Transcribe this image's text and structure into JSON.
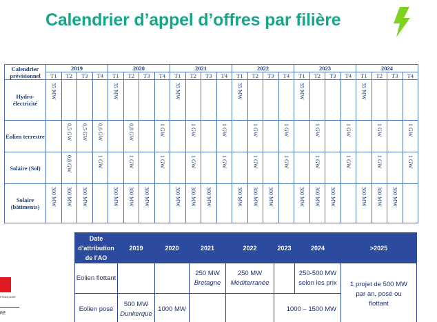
{
  "title": "Calendrier d’appel d’offres par filière",
  "calendar": {
    "corner": "Calendrier prévisionnel",
    "years": [
      "2019",
      "2020",
      "2021",
      "2022",
      "2023",
      "2024"
    ],
    "quarters": [
      "T1",
      "T2",
      "T3",
      "T4"
    ],
    "rows": [
      {
        "label": "Hydro-électricité",
        "cells": [
          "35 MW",
          "",
          "",
          "",
          "35 MW",
          "",
          "",
          "",
          "35 MW",
          "",
          "",
          "",
          "35 MW",
          "",
          "",
          "",
          "35 MW",
          "",
          "",
          "",
          "35 MW",
          "",
          "",
          ""
        ]
      },
      {
        "label": "Eolien terrestre",
        "cells": [
          "",
          "0,5 GW",
          "0,5 GW",
          "0,6 GW",
          "",
          "0,8 GW",
          "",
          "1 GW",
          "",
          "1 GW",
          "",
          "1 GW",
          "",
          "1 GW",
          "",
          "1 GW",
          "",
          "1 GW",
          "",
          "1 GW",
          "",
          "1 GW",
          "",
          "1 GW"
        ]
      },
      {
        "label": "Solaire (Sol)",
        "cells": [
          "",
          "0,8 GW",
          "",
          "1 GW",
          "",
          "1 GW",
          "",
          "1 GW",
          "",
          "1 GW",
          "",
          "1 GW",
          "",
          "1 GW",
          "",
          "1 GW",
          "",
          "1 GW",
          "",
          "1 GW",
          "",
          "1 GW",
          "",
          "1 GW"
        ]
      },
      {
        "label": "Solaire (bâtiments)",
        "cells": [
          "300 MW",
          "300 MW",
          "300 MW",
          "",
          "300 MW",
          "300 MW",
          "300 MW",
          "",
          "300 MW",
          "300 MW",
          "300 MW",
          "",
          "300 MW",
          "300 MW",
          "300 MW",
          "",
          "300 MW",
          "300 MW",
          "300 MW",
          "",
          "300 MW",
          "300 MW",
          "300 MW",
          ""
        ]
      }
    ]
  },
  "ao_table": {
    "header": {
      "date": "Date d’attribution de l’AO",
      "cols": [
        "2019",
        "2020",
        "2021",
        "2022",
        "2023",
        "2024",
        ">2025"
      ]
    },
    "flottant": {
      "label": "Eolien flottant",
      "y2021_mw": "250 MW",
      "y2021_loc": "Bretagne",
      "y2022_mw": "250 MW",
      "y2022_loc": "Méditerranée",
      "y2024": "250-500 MW selon les prix",
      "y2025": "1 projet de 500 MW par an, posé ou flottant"
    },
    "pose": {
      "label": "Eolien posé",
      "y2019_mw": "500 MW",
      "y2019_loc": "Dunkerque",
      "y2020": "1000 MW",
      "y2023_2024": "1000 – 1500 MW"
    }
  },
  "logo": {
    "line1": "FRANÇAISE",
    "line2": "RE"
  },
  "colors": {
    "title": "#18a68a",
    "bolt": "#7ed321",
    "header_bg": "#2c4b9e",
    "logo_red": "#e01a22"
  }
}
